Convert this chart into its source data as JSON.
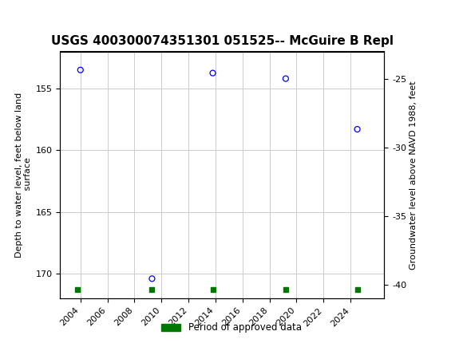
{
  "title": "USGS 400300074351301 051525-- McGuire B Repl",
  "ylabel_left": "Depth to water level, feet below land\n surface",
  "ylabel_right": "Groundwater level above NAVD 1988, feet",
  "header_color": "#006633",
  "background_color": "#ffffff",
  "plot_bg_color": "#ffffff",
  "grid_color": "#cccccc",
  "scatter_x": [
    2004.0,
    2009.3,
    2013.8,
    2019.2,
    2024.5
  ],
  "scatter_y_left": [
    153.5,
    170.4,
    153.75,
    154.2,
    158.3
  ],
  "green_marker_x": [
    2003.8,
    2009.3,
    2013.8,
    2019.2,
    2024.5
  ],
  "green_marker_y": [
    171.3,
    171.3,
    171.3,
    171.3,
    171.3
  ],
  "ylim_left_bottom": 172.0,
  "ylim_left_top": 152.0,
  "yticks_left": [
    155,
    160,
    165,
    170
  ],
  "yticks_right": [
    -25,
    -30,
    -35,
    -40
  ],
  "xticks": [
    2004,
    2006,
    2008,
    2010,
    2012,
    2014,
    2016,
    2018,
    2020,
    2022,
    2024
  ],
  "xlim_left": 2002.5,
  "xlim_right": 2026.5,
  "dot_color": "blue",
  "dot_size": 25,
  "legend_label": "Period of approved data",
  "legend_color": "#007700",
  "title_fontsize": 11,
  "tick_fontsize": 8,
  "ylabel_fontsize": 8
}
